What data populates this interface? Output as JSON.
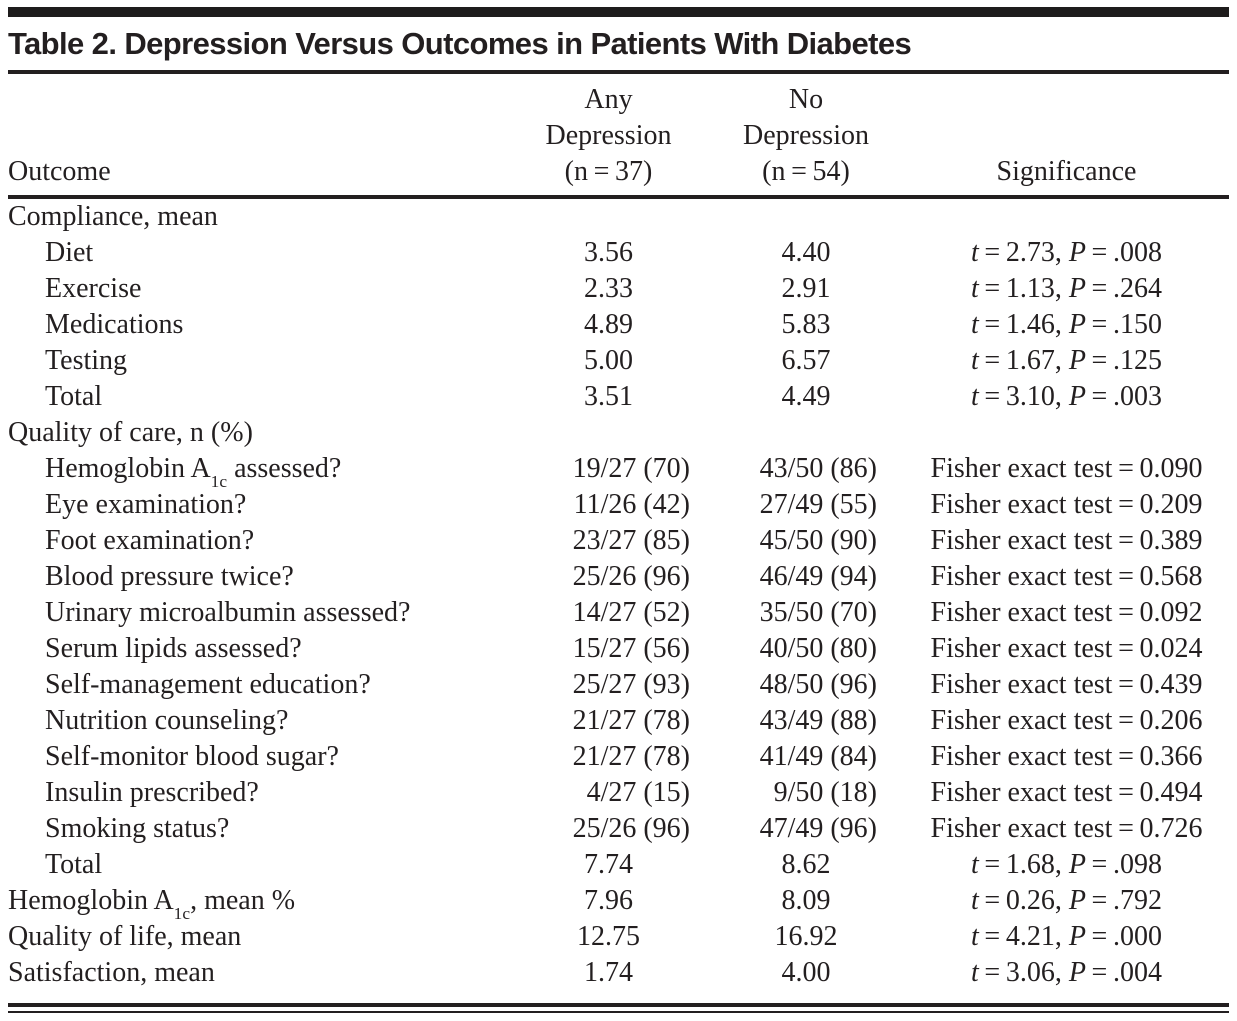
{
  "doc": {
    "title": "Table 2. Depression Versus Outcomes in Patients With Diabetes",
    "header": {
      "outcome": "Outcome",
      "any_lines": [
        "Any",
        "Depression",
        "(n = 37)"
      ],
      "no_lines": [
        "No",
        "Depression",
        "(n = 54)"
      ],
      "significance": "Significance"
    },
    "rows": [
      {
        "outcome": "Compliance, mean",
        "indent": false,
        "any": "",
        "no": "",
        "sig": ""
      },
      {
        "outcome": "Diet",
        "indent": true,
        "any": "3.56",
        "no": "4.40",
        "sig": "*t* = 2.73, *P* = .008"
      },
      {
        "outcome": "Exercise",
        "indent": true,
        "any": "2.33",
        "no": "2.91",
        "sig": "*t* = 1.13, *P* = .264"
      },
      {
        "outcome": "Medications",
        "indent": true,
        "any": "4.89",
        "no": "5.83",
        "sig": "*t* = 1.46, *P* = .150"
      },
      {
        "outcome": "Testing",
        "indent": true,
        "any": "5.00",
        "no": "6.57",
        "sig": "*t* = 1.67, *P* = .125"
      },
      {
        "outcome": "Total",
        "indent": true,
        "any": "3.51",
        "no": "4.49",
        "sig": "*t* = 3.10, *P* = .003"
      },
      {
        "outcome": "Quality of care, n (%)",
        "indent": false,
        "any": "",
        "no": "",
        "sig": ""
      },
      {
        "outcome": "Hemoglobin A_{1c} assessed?",
        "indent": true,
        "any": "19/27 (70)",
        "no": "43/50 (86)",
        "sig": "Fisher exact test = 0.090"
      },
      {
        "outcome": "Eye examination?",
        "indent": true,
        "any": "11/26 (42)",
        "no": "27/49 (55)",
        "sig": "Fisher exact test = 0.209"
      },
      {
        "outcome": "Foot examination?",
        "indent": true,
        "any": "23/27 (85)",
        "no": "45/50 (90)",
        "sig": "Fisher exact test = 0.389"
      },
      {
        "outcome": "Blood pressure twice?",
        "indent": true,
        "any": "25/26 (96)",
        "no": "46/49 (94)",
        "sig": "Fisher exact test = 0.568"
      },
      {
        "outcome": "Urinary microalbumin assessed?",
        "indent": true,
        "any": "14/27 (52)",
        "no": "35/50 (70)",
        "sig": "Fisher exact test = 0.092"
      },
      {
        "outcome": "Serum lipids assessed?",
        "indent": true,
        "any": "15/27 (56)",
        "no": "40/50 (80)",
        "sig": "Fisher exact test = 0.024"
      },
      {
        "outcome": "Self-management education?",
        "indent": true,
        "any": "25/27 (93)",
        "no": "48/50 (96)",
        "sig": "Fisher exact test = 0.439"
      },
      {
        "outcome": "Nutrition counseling?",
        "indent": true,
        "any": "21/27 (78)",
        "no": "43/49 (88)",
        "sig": "Fisher exact test = 0.206"
      },
      {
        "outcome": "Self-monitor blood sugar?",
        "indent": true,
        "any": "21/27 (78)",
        "no": "41/49 (84)",
        "sig": "Fisher exact test = 0.366"
      },
      {
        "outcome": "Insulin prescribed?",
        "indent": true,
        "any": "4/27 (15)",
        "no": "9/50 (18)",
        "sig": "Fisher exact test = 0.494"
      },
      {
        "outcome": "Smoking status?",
        "indent": true,
        "any": "25/26 (96)",
        "no": "47/49 (96)",
        "sig": "Fisher exact test = 0.726"
      },
      {
        "outcome": "Total",
        "indent": true,
        "any": "7.74",
        "no": "8.62",
        "sig": "*t* = 1.68, *P* = .098"
      },
      {
        "outcome": "Hemoglobin A_{1c}, mean %",
        "indent": false,
        "any": "7.96",
        "no": "8.09",
        "sig": "*t* = 0.26, *P* = .792"
      },
      {
        "outcome": "Quality of life, mean",
        "indent": false,
        "any": "12.75",
        "no": "16.92",
        "sig": "*t* = 4.21, *P* = .000"
      },
      {
        "outcome": "Satisfaction, mean",
        "indent": false,
        "any": "1.74",
        "no": "4.00",
        "sig": "*t* = 3.06, *P* = .004"
      }
    ],
    "colors": {
      "text": "#231f20",
      "rule": "#231f20",
      "background": "#ffffff"
    }
  }
}
